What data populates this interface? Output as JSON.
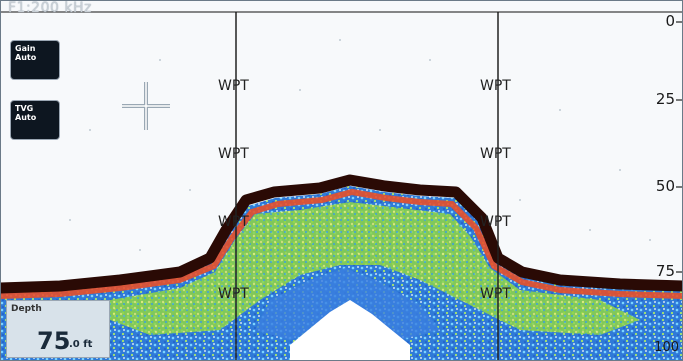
{
  "header": {
    "frequency_label": "F1:200 kHz"
  },
  "controls": [
    {
      "line1": "Gain",
      "line2": "Auto"
    },
    {
      "line1": "TVG",
      "line2": "Auto"
    }
  ],
  "waypoint_marker_label": "WPT",
  "depth_scale": [
    "0",
    "25",
    "50",
    "75",
    "100"
  ],
  "depth_readout": {
    "label": "Depth",
    "value": "75",
    "unit": ".0 ft"
  },
  "colors": {
    "background": "#f7f9fb",
    "bottom": "#2a0a05",
    "waypoint_line": "#222222"
  }
}
